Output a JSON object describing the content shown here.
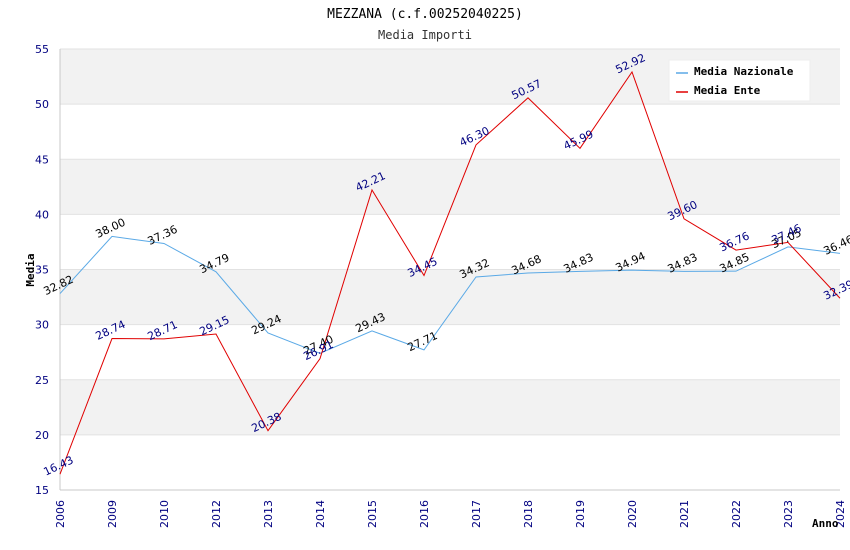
{
  "chart_data": {
    "type": "line",
    "title": "MEZZANA (c.f.00252040225)",
    "subtitle": "Media Importi",
    "xlabel": "Anno",
    "ylabel": "Media",
    "ylim": [
      15,
      55
    ],
    "yticks": [
      "15",
      "20",
      "25",
      "30",
      "35",
      "40",
      "45",
      "50",
      "55"
    ],
    "grid": "horizontal alternating bands",
    "legend_position": "top-right",
    "categories": [
      "2006",
      "2009",
      "2010",
      "2012",
      "2013",
      "2014",
      "2015",
      "2016",
      "2017",
      "2018",
      "2019",
      "2020",
      "2021",
      "2022",
      "2023",
      "2024"
    ],
    "series": [
      {
        "name": "Media Nazionale",
        "color": "#5aa9e6",
        "label_color": "#000000",
        "values": [
          32.82,
          38.0,
          37.36,
          34.79,
          29.24,
          27.4,
          29.43,
          27.71,
          34.32,
          34.68,
          34.83,
          34.94,
          34.83,
          34.85,
          37.05,
          36.46
        ],
        "labels": [
          "32.82",
          "38.00",
          "37.36",
          "34.79",
          "29.24",
          "27.40",
          "29.43",
          "27.71",
          "34.32",
          "34.68",
          "34.83",
          "34.94",
          "34.83",
          "34.85",
          "37.05",
          "36.46"
        ]
      },
      {
        "name": "Media Ente",
        "color": "#e00000",
        "label_color": "#000080",
        "values": [
          16.43,
          28.74,
          28.71,
          29.15,
          20.38,
          26.91,
          42.21,
          34.45,
          46.3,
          50.57,
          45.99,
          52.92,
          39.6,
          36.76,
          37.46,
          32.39
        ],
        "labels": [
          "16.43",
          "28.74",
          "28.71",
          "29.15",
          "20.38",
          "26.91",
          "42.21",
          "34.45",
          "46.30",
          "50.57",
          "45.99",
          "52.92",
          "39.60",
          "36.76",
          "37.46",
          "32.39"
        ]
      }
    ]
  }
}
